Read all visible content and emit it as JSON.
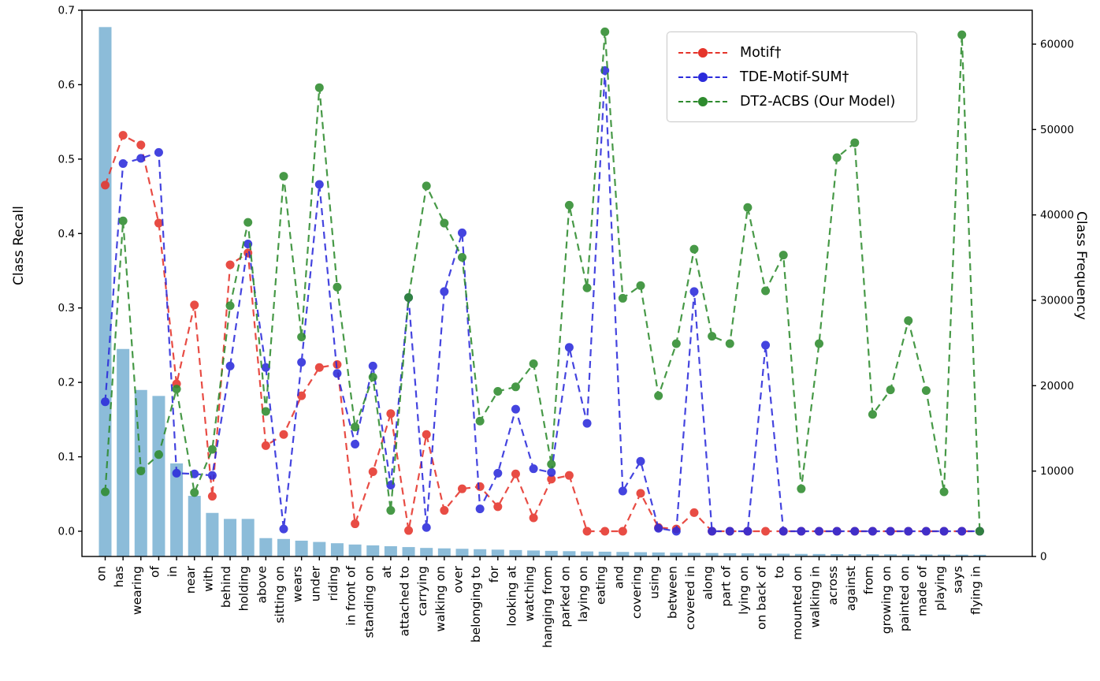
{
  "figure": {
    "ylabel_left": "Class Recall",
    "ylabel_right": "Class Frequency"
  },
  "legend": {
    "entries": [
      {
        "label": "Motif†",
        "color": "#e5342b"
      },
      {
        "label": "TDE-Motif-SUM†",
        "color": "#2b2bdb"
      },
      {
        "label": "DT2-ACBS (Our Model)",
        "color": "#2e8b2e"
      }
    ]
  },
  "chart_data": {
    "type": "line+bar",
    "title": "",
    "xlabel": "",
    "ylabel_left": "Class Recall",
    "ylabel_right": "Class Frequency",
    "ylim_left": [
      0.0,
      0.7
    ],
    "ylim_right": [
      0,
      60000
    ],
    "yticks_left": [
      "0.0",
      "0.1",
      "0.2",
      "0.3",
      "0.4",
      "0.5",
      "0.6",
      "0.7"
    ],
    "yticks_left_values": [
      0.0,
      0.1,
      0.2,
      0.3,
      0.4,
      0.5,
      0.6,
      0.7
    ],
    "yticks_right": [
      "0",
      "10000",
      "20000",
      "30000",
      "40000",
      "50000",
      "60000"
    ],
    "yticks_right_values": [
      0,
      10000,
      20000,
      30000,
      40000,
      50000,
      60000
    ],
    "grid": false,
    "legend_position": "upper right",
    "categories": [
      "on",
      "has",
      "wearing",
      "of",
      "in",
      "near",
      "with",
      "behind",
      "holding",
      "above",
      "sitting on",
      "wears",
      "under",
      "riding",
      "in front of",
      "standing on",
      "at",
      "attached to",
      "carrying",
      "walking on",
      "over",
      "belonging to",
      "for",
      "looking at",
      "watching",
      "hanging from",
      "parked on",
      "laying on",
      "eating",
      "and",
      "covering",
      "using",
      "between",
      "covered in",
      "along",
      "part of",
      "lying on",
      "on back of",
      "to",
      "mounted on",
      "walking in",
      "across",
      "against",
      "from",
      "growing on",
      "painted on",
      "made of",
      "playing",
      "says",
      "flying in"
    ],
    "series": [
      {
        "name": "Motif†",
        "color": "#e5342b",
        "style": "dashed-dot",
        "axis": "recall",
        "values": [
          0.465,
          0.532,
          0.519,
          0.414,
          0.198,
          0.304,
          0.047,
          0.358,
          0.374,
          0.115,
          0.13,
          0.182,
          0.22,
          0.224,
          0.01,
          0.08,
          0.158,
          0.001,
          0.13,
          0.028,
          0.057,
          0.06,
          0.033,
          0.077,
          0.018,
          0.07,
          0.075,
          0.0,
          0.0,
          0.0,
          0.051,
          0.005,
          0.003,
          0.025,
          0.0,
          0.0,
          0.0,
          0.0,
          0.0,
          0.0,
          0.0,
          0.0,
          0.0,
          0.0,
          0.0,
          0.0,
          0.0,
          0.0,
          0.0,
          0.0
        ]
      },
      {
        "name": "TDE-Motif-SUM†",
        "color": "#2b2bdb",
        "style": "dashed-dot",
        "axis": "recall",
        "values": [
          0.174,
          0.494,
          0.501,
          0.509,
          0.078,
          0.077,
          0.075,
          0.222,
          0.386,
          0.22,
          0.003,
          0.227,
          0.466,
          0.212,
          0.117,
          0.222,
          0.062,
          0.314,
          0.005,
          0.322,
          0.401,
          0.03,
          0.078,
          0.164,
          0.084,
          0.079,
          0.247,
          0.145,
          0.619,
          0.054,
          0.094,
          0.004,
          0.0,
          0.322,
          0.0,
          0.0,
          0.0,
          0.25,
          0.0,
          0.0,
          0.0,
          0.0,
          0.0,
          0.0,
          0.0,
          0.0,
          0.0,
          0.0,
          0.0,
          0.0
        ]
      },
      {
        "name": "DT2-ACBS (Our Model)",
        "color": "#2e8b2e",
        "style": "dashed-dot",
        "axis": "recall",
        "values": [
          0.053,
          0.417,
          0.081,
          0.103,
          0.191,
          0.052,
          0.11,
          0.303,
          0.415,
          0.161,
          0.477,
          0.261,
          0.596,
          0.328,
          0.14,
          0.207,
          0.028,
          0.314,
          0.464,
          0.414,
          0.368,
          0.148,
          0.188,
          0.194,
          0.225,
          0.09,
          0.438,
          0.327,
          0.671,
          0.313,
          0.33,
          0.182,
          0.252,
          0.379,
          0.262,
          0.252,
          0.435,
          0.323,
          0.371,
          0.057,
          0.252,
          0.502,
          0.522,
          0.157,
          0.19,
          0.283,
          0.189,
          0.053,
          0.667,
          0.0
        ]
      }
    ],
    "bars": {
      "name": "Class Frequency",
      "color": "#8cbcd9",
      "axis": "frequency",
      "values": [
        62000,
        24300,
        19500,
        18800,
        10900,
        7100,
        5100,
        4400,
        4400,
        2150,
        2050,
        1850,
        1700,
        1550,
        1400,
        1300,
        1200,
        1100,
        1000,
        950,
        900,
        850,
        800,
        750,
        700,
        660,
        620,
        590,
        560,
        530,
        500,
        470,
        440,
        420,
        400,
        380,
        360,
        340,
        320,
        300,
        290,
        280,
        270,
        260,
        250,
        240,
        230,
        220,
        210,
        200
      ]
    }
  }
}
